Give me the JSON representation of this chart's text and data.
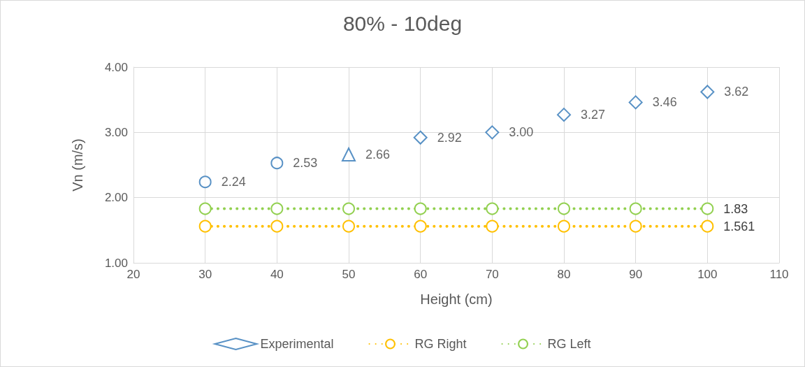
{
  "chart_data": {
    "type": "scatter",
    "title": "80% - 10deg",
    "xlabel": "Height (cm)",
    "ylabel": "Vn (m/s)",
    "xlim": [
      20,
      110
    ],
    "xticks": [
      20,
      30,
      40,
      50,
      60,
      70,
      80,
      90,
      100,
      110
    ],
    "ylim": [
      1,
      4
    ],
    "yticks": [
      {
        "value": 1,
        "label": "1.00"
      },
      {
        "value": 2,
        "label": "2.00"
      },
      {
        "value": 3,
        "label": "3.00"
      },
      {
        "value": 4,
        "label": "4.00"
      }
    ],
    "grid": true,
    "legend": "bottom",
    "series": [
      {
        "name": "Experimental",
        "marker": "diamond",
        "color": "#2e75b6",
        "x": [
          60,
          70,
          80,
          90,
          100
        ],
        "values": [
          2.92,
          3.0,
          3.27,
          3.46,
          3.62
        ],
        "value_labels": [
          "2.92",
          "3.00",
          "3.27",
          "3.46",
          "3.62"
        ]
      },
      {
        "marker": "circle",
        "color": "#2e75b6",
        "x": [
          30,
          40
        ],
        "values": [
          2.24,
          2.53
        ],
        "value_labels": [
          "2.24",
          "2.53"
        ]
      },
      {
        "marker": "triangle",
        "color": "#2e75b6",
        "x": [
          50
        ],
        "values": [
          2.66
        ],
        "value_labels": [
          "2.66"
        ]
      },
      {
        "name": "RG Right",
        "type": "line",
        "marker": "circle",
        "line_style": "dotted",
        "color": "#ffc000",
        "x": [
          30,
          40,
          50,
          60,
          70,
          80,
          90,
          100
        ],
        "values": [
          1.561,
          1.561,
          1.561,
          1.561,
          1.561,
          1.561,
          1.561,
          1.561
        ],
        "value_labels": [
          null,
          null,
          null,
          null,
          null,
          null,
          null,
          "1.561"
        ]
      },
      {
        "name": "RG Left",
        "type": "line",
        "marker": "circle",
        "line_style": "dotted",
        "color": "#92d050",
        "x": [
          30,
          40,
          50,
          60,
          70,
          80,
          90,
          100
        ],
        "values": [
          1.83,
          1.83,
          1.83,
          1.83,
          1.83,
          1.83,
          1.83,
          1.83
        ],
        "value_labels": [
          null,
          null,
          null,
          null,
          null,
          null,
          null,
          "1.83"
        ]
      }
    ]
  }
}
